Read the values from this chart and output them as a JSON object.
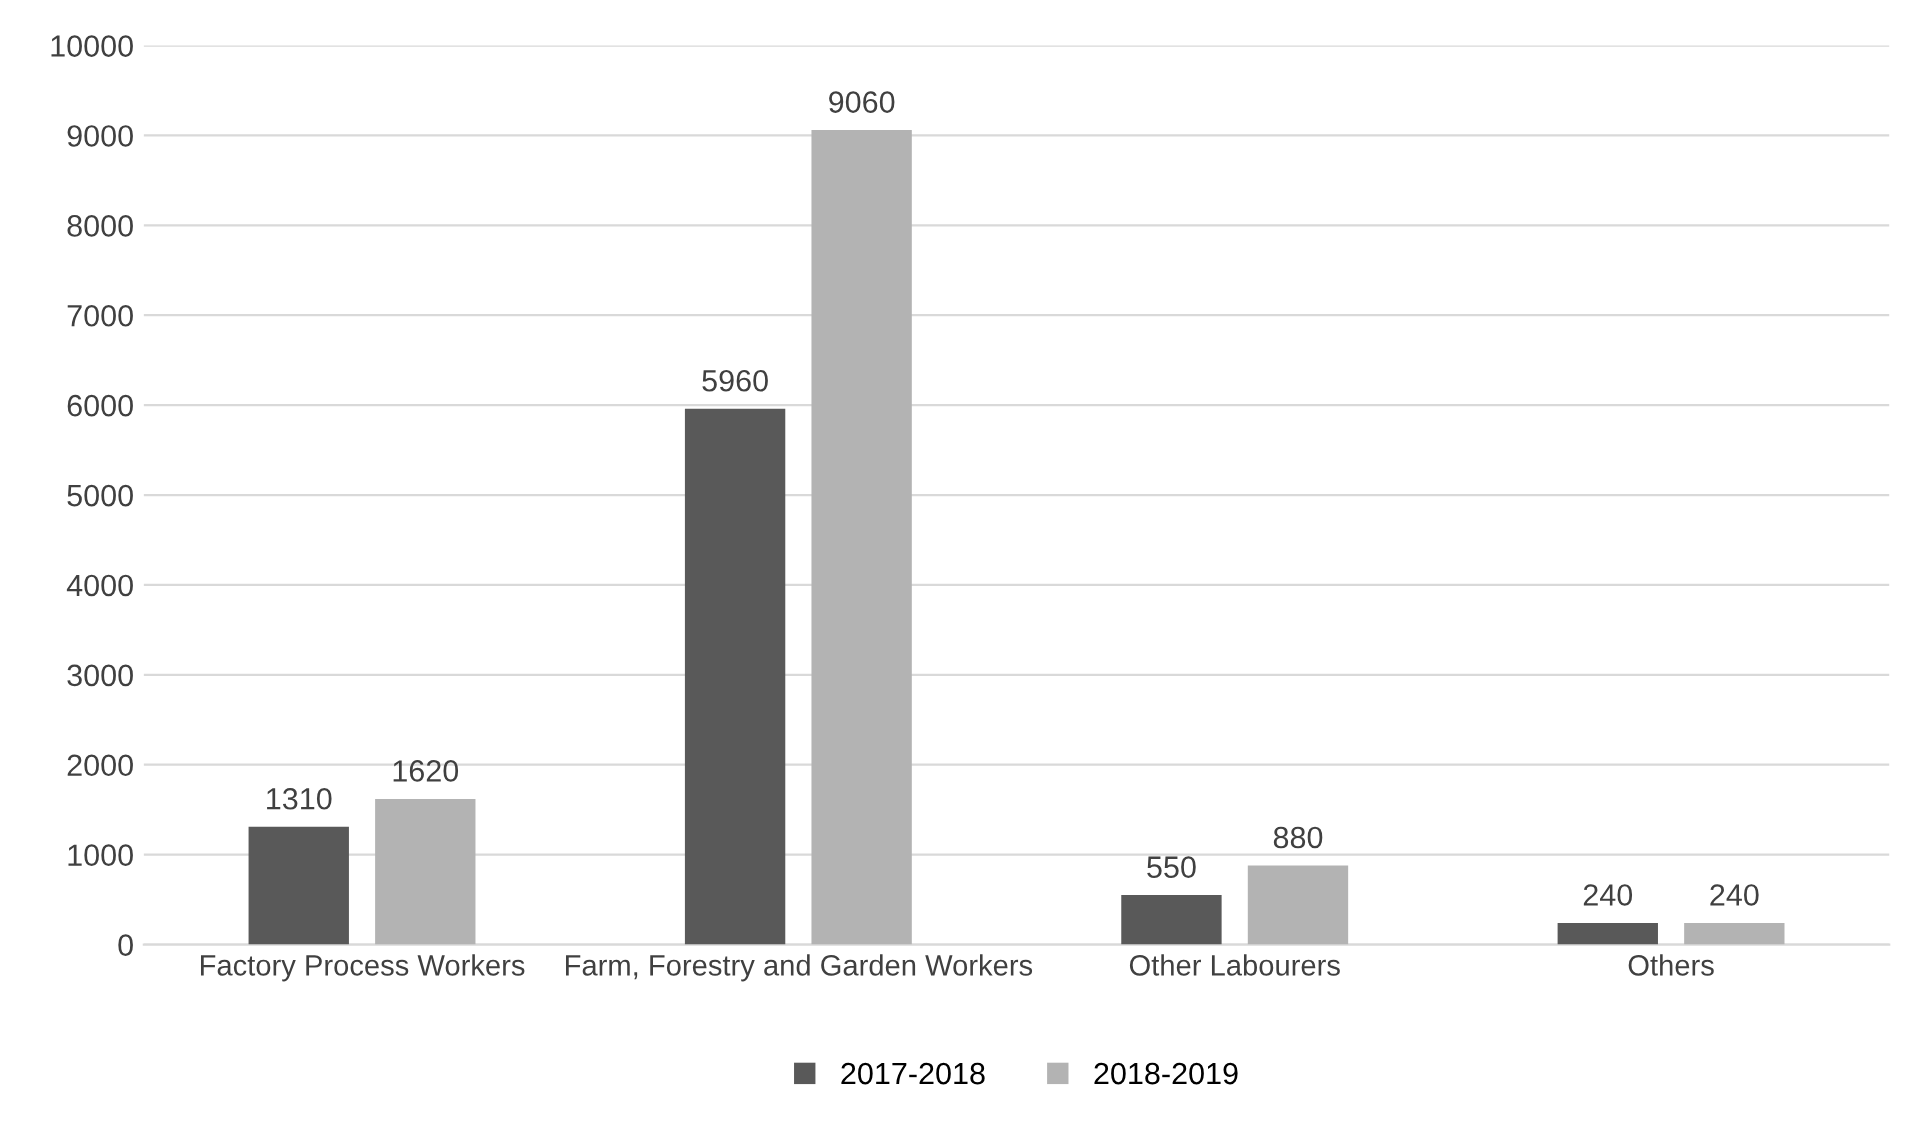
{
  "chart_data": {
    "type": "bar",
    "categories": [
      "Factory Process Workers",
      "Farm, Forestry and Garden Workers",
      "Other Labourers",
      "Others"
    ],
    "series": [
      {
        "name": "2017-2018",
        "color": "#595959",
        "values": [
          1310,
          5960,
          550,
          240
        ]
      },
      {
        "name": "2018-2019",
        "color": "#b3b3b3",
        "values": [
          1620,
          9060,
          880,
          240
        ]
      }
    ],
    "ylim": [
      0,
      10000
    ],
    "yticks": [
      0,
      1000,
      2000,
      3000,
      4000,
      5000,
      6000,
      7000,
      8000,
      9000,
      10000
    ],
    "grid": "y",
    "legend": "bottom",
    "data_labels": true
  }
}
